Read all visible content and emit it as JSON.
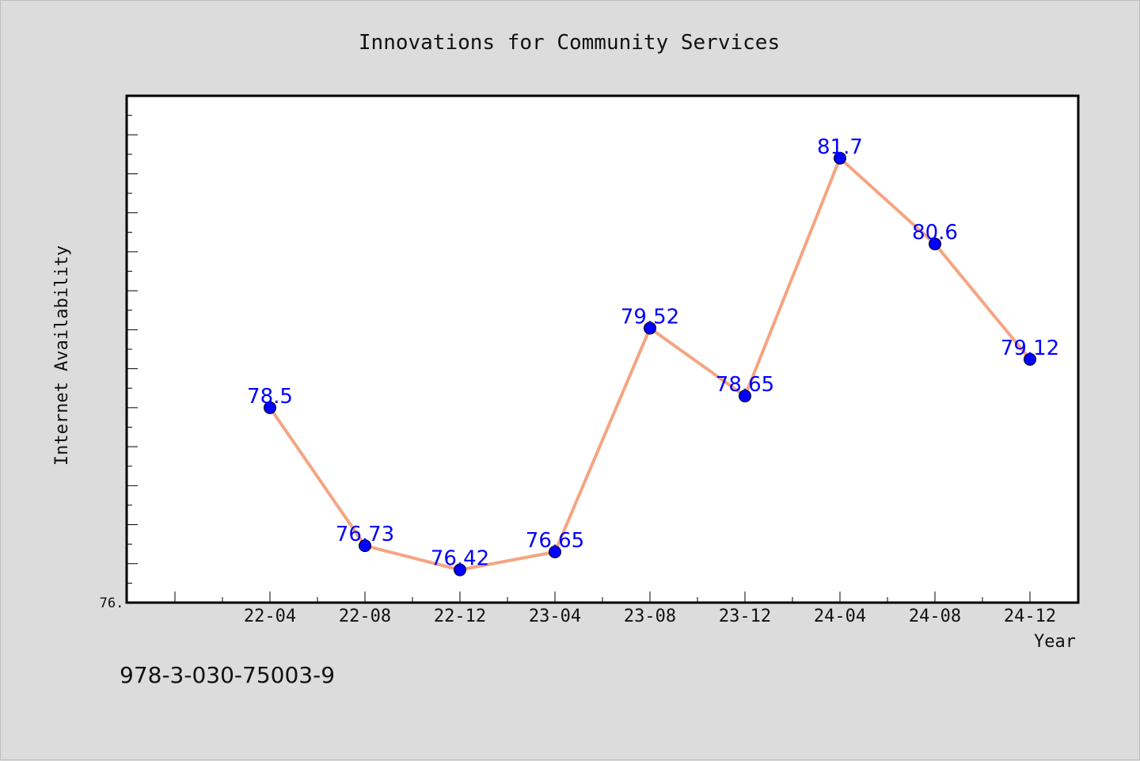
{
  "chart_data": {
    "type": "line",
    "title": "Innovations for Community Services",
    "xlabel": "Year",
    "ylabel": "Internet Availability",
    "categories": [
      "22-04",
      "22-08",
      "22-12",
      "23-04",
      "23-08",
      "23-12",
      "24-04",
      "24-08",
      "24-12"
    ],
    "series": [
      {
        "values": [
          78.5,
          76.73,
          76.42,
          76.65,
          79.52,
          78.65,
          81.7,
          80.6,
          79.12
        ],
        "data_labels": [
          "78.5",
          "76.73",
          "76.42",
          "76.65",
          "79.52",
          "78.65",
          "81.7",
          "80.6",
          "79.12"
        ]
      }
    ],
    "y_tick_label": "76.",
    "ylim": [
      76.0,
      82.5
    ],
    "grid": false,
    "legend": "none",
    "colors": {
      "line": "#f4a582",
      "marker": "#0000ff",
      "marker_edge": "#000000",
      "data_label": "#0000ff",
      "plot_background": "#ffffff",
      "figure_background": "#dcdcdc"
    }
  },
  "footer": {
    "isbn": "978-3-030-75003-9"
  }
}
